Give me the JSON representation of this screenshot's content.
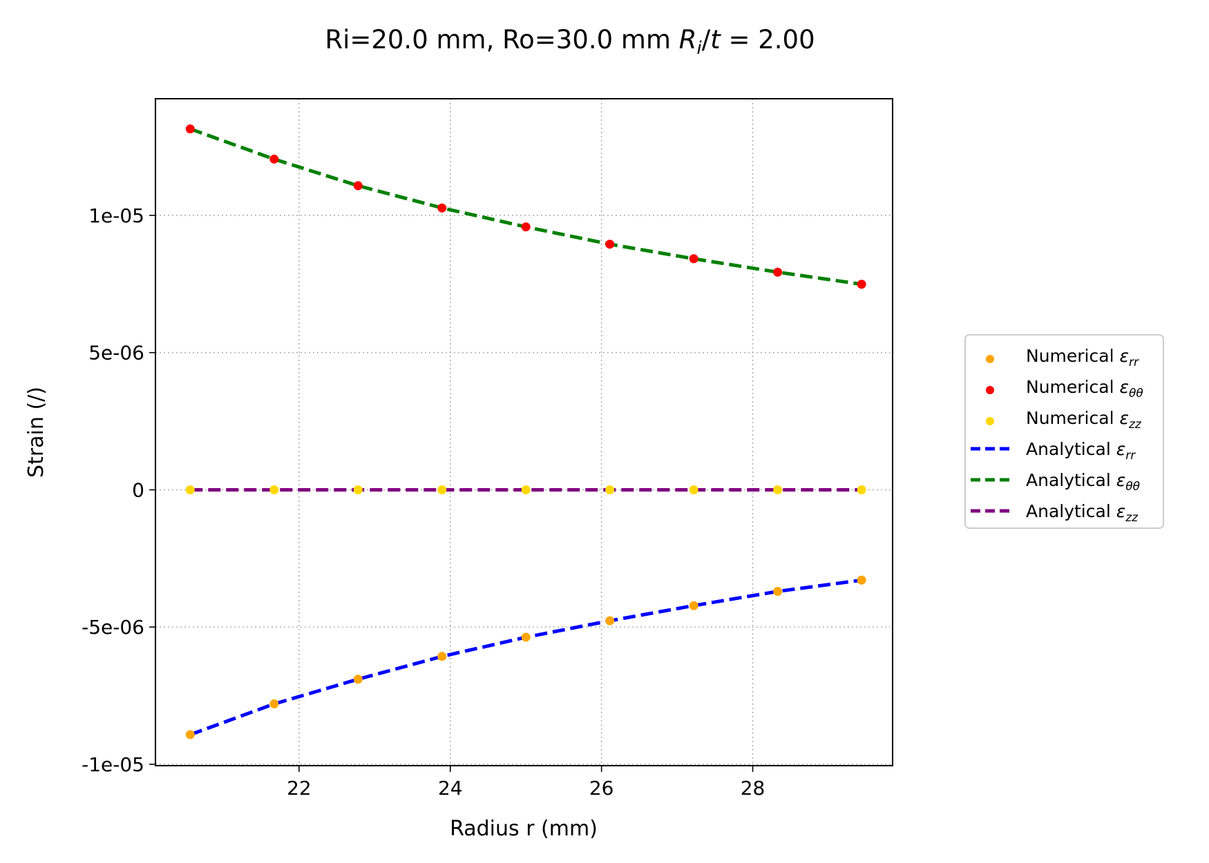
{
  "chart_data": {
    "type": "scatter",
    "title_prefix": "Ri=20.0 mm, Ro=30.0 mm ",
    "title_math": {
      "R": "R",
      "i": "i",
      "slash": "/",
      "t": "t",
      "eq": " = 2.00"
    },
    "xlabel": "Radius r (mm)",
    "ylabel": "Strain (/)",
    "xlim": [
      20.1,
      29.85
    ],
    "ylim": [
      -1.005e-05,
      1.425e-05
    ],
    "x_ticks": [
      22,
      24,
      26,
      28
    ],
    "x_tick_labels": [
      "22",
      "24",
      "26",
      "28"
    ],
    "y_ticks": [
      -1e-05,
      -5e-06,
      0,
      5e-06,
      1e-05
    ],
    "y_tick_labels": [
      "-1e-05",
      "-5e-06",
      "0",
      "5e-06",
      "1e-05"
    ],
    "grid": true,
    "legend_position": "outside-right",
    "x": [
      20.56,
      21.67,
      22.78,
      23.89,
      25.0,
      26.11,
      27.22,
      28.33,
      29.44
    ],
    "series": [
      {
        "name": "Numerical",
        "sub": "rr",
        "kind": "scatter",
        "color": "#ffa500",
        "values": [
          -8.92e-06,
          -7.8e-06,
          -6.9e-06,
          -6.07e-06,
          -5.37e-06,
          -4.77e-06,
          -4.22e-06,
          -3.7e-06,
          -3.29e-06
        ]
      },
      {
        "name": "Numerical",
        "sub": "θθ",
        "kind": "scatter",
        "color": "#ff0000",
        "values": [
          1.315e-05,
          1.205e-05,
          1.108e-05,
          1.027e-05,
          9.58e-06,
          8.95e-06,
          8.42e-06,
          7.93e-06,
          7.49e-06
        ]
      },
      {
        "name": "Numerical",
        "sub": "zz",
        "kind": "scatter",
        "color": "#ffd700",
        "values": [
          0,
          0,
          0,
          0,
          0,
          0,
          0,
          0,
          0
        ]
      },
      {
        "name": "Analytical",
        "sub": "rr",
        "kind": "line",
        "color": "#0000ff",
        "values": [
          -8.92e-06,
          -7.8e-06,
          -6.9e-06,
          -6.07e-06,
          -5.37e-06,
          -4.77e-06,
          -4.22e-06,
          -3.7e-06,
          -3.29e-06
        ]
      },
      {
        "name": "Analytical",
        "sub": "θθ",
        "kind": "line",
        "color": "#008000",
        "values": [
          1.315e-05,
          1.205e-05,
          1.108e-05,
          1.027e-05,
          9.58e-06,
          8.95e-06,
          8.42e-06,
          7.93e-06,
          7.49e-06
        ]
      },
      {
        "name": "Analytical",
        "sub": "zz",
        "kind": "line",
        "color": "#800080",
        "values": [
          0,
          0,
          0,
          0,
          0,
          0,
          0,
          0,
          0
        ]
      }
    ]
  }
}
